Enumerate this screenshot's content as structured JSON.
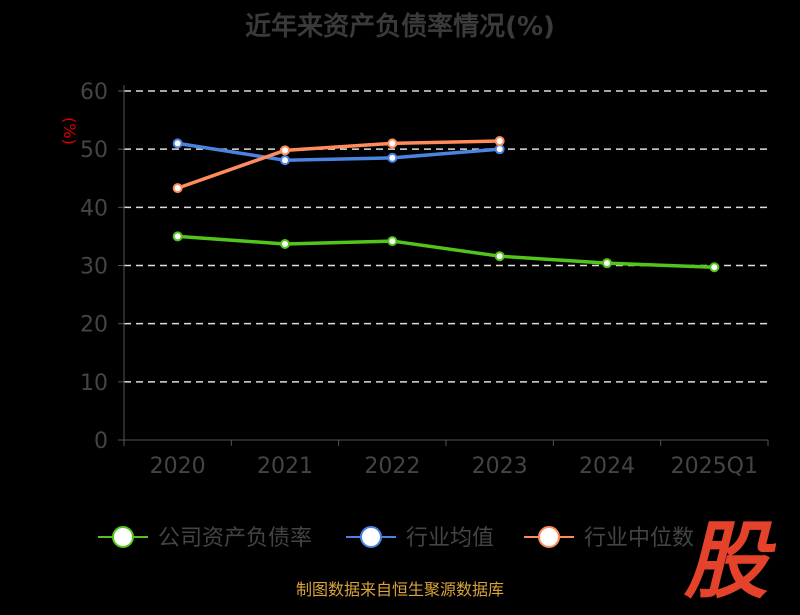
{
  "chart_data": {
    "type": "line",
    "title": "近年来资产负债率情况(%)",
    "ylabel": "(%)",
    "xlabel": "",
    "categories": [
      "2020",
      "2021",
      "2022",
      "2023",
      "2024",
      "2025Q1"
    ],
    "ylim": [
      0,
      60
    ],
    "yticks": [
      "0",
      "10",
      "20",
      "30",
      "40",
      "50",
      "60"
    ],
    "grid": true,
    "legend_position": "bottom",
    "series": [
      {
        "name": "公司资产负债率",
        "color": "#52c41a",
        "values": [
          35.0,
          33.7,
          34.2,
          31.6,
          30.4,
          29.7
        ]
      },
      {
        "name": "行业均值",
        "color": "#4a84e0",
        "values": [
          51.0,
          48.1,
          48.5,
          50.0,
          null,
          null
        ]
      },
      {
        "name": "行业中位数",
        "color": "#ff8c5a",
        "values": [
          43.3,
          49.8,
          51.0,
          51.4,
          null,
          null
        ]
      }
    ]
  },
  "source": "制图数据来自恒生聚源数据库",
  "watermark": "股"
}
